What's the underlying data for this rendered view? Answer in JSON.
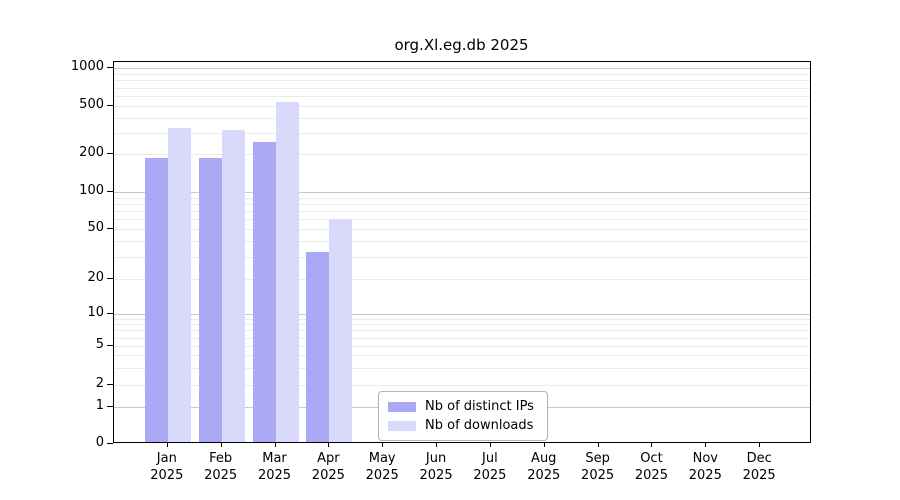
{
  "title": "org.Xl.eg.db 2025",
  "chart_data": {
    "type": "bar",
    "title": "org.Xl.eg.db 2025",
    "categories": [
      "Jan",
      "Feb",
      "Mar",
      "Apr",
      "May",
      "Jun",
      "Jul",
      "Aug",
      "Sep",
      "Oct",
      "Nov",
      "Dec"
    ],
    "category_year": "2025",
    "series": [
      {
        "name": "Nb of distinct IPs",
        "color": "#a9a9f5",
        "values": [
          185,
          185,
          250,
          33,
          null,
          null,
          null,
          null,
          null,
          null,
          null,
          null
        ]
      },
      {
        "name": "Nb of downloads",
        "color": "#d9d9fb",
        "values": [
          330,
          315,
          540,
          60,
          null,
          null,
          null,
          null,
          null,
          null,
          null,
          null
        ]
      }
    ],
    "xlabel": "",
    "ylabel": "",
    "y_ticks": [
      0,
      1,
      2,
      5,
      10,
      20,
      50,
      100,
      200,
      500,
      1000
    ],
    "ylim": [
      0,
      1000
    ],
    "yscale": "log-like with zero baseline",
    "grid": "horizontal, minor log gridlines",
    "legend_position": "inside bottom, left of center"
  },
  "legend": {
    "items": [
      {
        "label": "Nb of distinct IPs",
        "color": "#a9a9f5"
      },
      {
        "label": "Nb of downloads",
        "color": "#d9d9fb"
      }
    ]
  },
  "colors": {
    "background": "#ffffff",
    "axis": "#000000",
    "grid_major": "#c8c8c8",
    "grid_minor": "#ebebeb",
    "bar_distinct_ips": "#a9a9f5",
    "bar_downloads": "#d9d9fb"
  }
}
